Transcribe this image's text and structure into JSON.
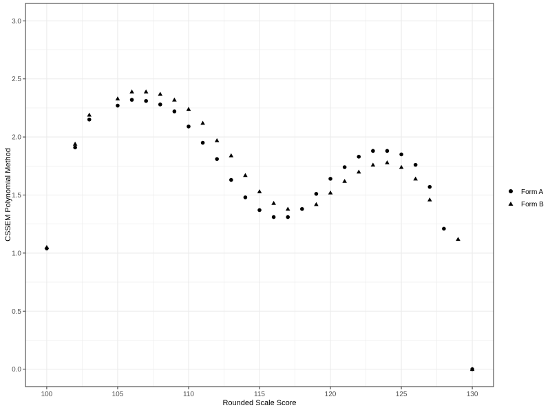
{
  "chart_data": {
    "type": "scatter",
    "title": "",
    "xlabel": "Rounded Scale Score",
    "ylabel": "CSSEM Polynomial Method",
    "xlim": [
      98.5,
      131.5
    ],
    "ylim": [
      -0.15,
      3.15
    ],
    "xticks": [
      100,
      105,
      110,
      115,
      120,
      125,
      130
    ],
    "yticks": [
      0.0,
      0.5,
      1.0,
      1.5,
      2.0,
      2.5,
      3.0
    ],
    "ytick_labels": [
      "0.0",
      "0.5",
      "1.0",
      "1.5",
      "2.0",
      "2.5",
      "3.0"
    ],
    "grid": true,
    "legend_position": "right",
    "series": [
      {
        "name": "Form A",
        "marker": "circle",
        "x": [
          100,
          102,
          103,
          105,
          106,
          107,
          108,
          109,
          110,
          111,
          112,
          113,
          114,
          115,
          116,
          117,
          118,
          119,
          120,
          121,
          122,
          123,
          124,
          125,
          126,
          127,
          128,
          130
        ],
        "y": [
          1.04,
          1.91,
          2.15,
          2.27,
          2.32,
          2.31,
          2.28,
          2.22,
          2.09,
          1.95,
          1.81,
          1.63,
          1.48,
          1.37,
          1.31,
          1.31,
          1.38,
          1.51,
          1.64,
          1.74,
          1.83,
          1.88,
          1.88,
          1.85,
          1.76,
          1.57,
          1.21,
          0.0
        ]
      },
      {
        "name": "Form B",
        "marker": "triangle",
        "x": [
          100,
          102,
          103,
          105,
          106,
          107,
          108,
          109,
          110,
          111,
          112,
          113,
          114,
          115,
          116,
          117,
          119,
          120,
          121,
          122,
          123,
          124,
          125,
          126,
          127,
          129,
          130
        ],
        "y": [
          1.05,
          1.94,
          2.19,
          2.33,
          2.39,
          2.39,
          2.37,
          2.32,
          2.24,
          2.12,
          1.97,
          1.84,
          1.67,
          1.53,
          1.43,
          1.38,
          1.42,
          1.52,
          1.62,
          1.7,
          1.76,
          1.78,
          1.74,
          1.64,
          1.46,
          1.12,
          0.0
        ]
      }
    ]
  },
  "colors": {
    "marker": "#000000",
    "grid": "#ebebeb",
    "panel_border": "#333333"
  }
}
